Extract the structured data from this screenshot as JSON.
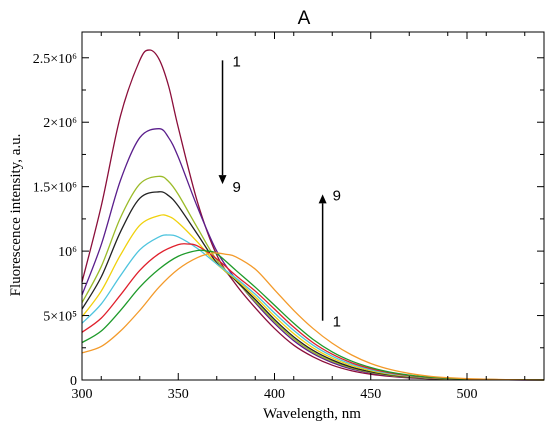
{
  "chart_data": {
    "type": "line",
    "title": "A",
    "xlabel": "Wavelength, nm",
    "ylabel": "Fluorescence intensity, a.u.",
    "xlim": [
      300,
      540
    ],
    "ylim": [
      0,
      2700000
    ],
    "xticks": [
      300,
      350,
      400,
      450,
      500
    ],
    "yticks": [
      {
        "value": 0,
        "label": "0"
      },
      {
        "value": 500000,
        "label": "5×10⁵"
      },
      {
        "value": 1000000,
        "label": "10⁶"
      },
      {
        "value": 1500000,
        "label": "1.5×10⁶"
      },
      {
        "value": 2000000,
        "label": "2×10⁶"
      },
      {
        "value": 2500000,
        "label": "2.5×10⁶"
      }
    ],
    "grid": false,
    "annotations": [
      {
        "direction": "down",
        "start_label": "1",
        "end_label": "9",
        "x_start": 373,
        "y_start": 2480000,
        "y_end": 1520000
      },
      {
        "direction": "up",
        "start_label": "1",
        "end_label": "9",
        "x_start": 425,
        "y_start": 460000,
        "y_end": 1440000
      }
    ],
    "series": [
      {
        "color": "#8b0e3a",
        "x": [
          300,
          310,
          320,
          330,
          335,
          340,
          345,
          350,
          360,
          370,
          380,
          390,
          400,
          410,
          420,
          430,
          440,
          450,
          460,
          470,
          480,
          490,
          500,
          510,
          520,
          540
        ],
        "y": [
          760000,
          1350000,
          2050000,
          2480000,
          2560000,
          2490000,
          2280000,
          1960000,
          1380000,
          970000,
          740000,
          560000,
          400000,
          270000,
          180000,
          115000,
          72000,
          45000,
          28000,
          17000,
          10000,
          6000,
          3000,
          1500,
          800,
          300
        ]
      },
      {
        "color": "#5a1e8c",
        "x": [
          300,
          310,
          320,
          330,
          340,
          345,
          350,
          360,
          370,
          380,
          390,
          400,
          410,
          420,
          430,
          440,
          450,
          460,
          470,
          480,
          490,
          500,
          510,
          520,
          540
        ],
        "y": [
          660000,
          1050000,
          1550000,
          1880000,
          1950000,
          1880000,
          1730000,
          1340000,
          1000000,
          780000,
          600000,
          440000,
          305000,
          205000,
          135000,
          85000,
          54000,
          33000,
          20000,
          12000,
          7000,
          4000,
          2000,
          1000,
          400
        ]
      },
      {
        "color": "#9bbb28",
        "x": [
          300,
          310,
          320,
          330,
          340,
          345,
          350,
          360,
          370,
          380,
          390,
          400,
          410,
          420,
          430,
          440,
          450,
          460,
          470,
          480,
          490,
          500,
          510,
          520,
          540
        ],
        "y": [
          600000,
          880000,
          1260000,
          1520000,
          1580000,
          1540000,
          1440000,
          1180000,
          930000,
          770000,
          610000,
          455000,
          320000,
          217000,
          145000,
          93000,
          59000,
          36000,
          22000,
          13000,
          8000,
          4500,
          2500,
          1200,
          500
        ]
      },
      {
        "color": "#222222",
        "x": [
          300,
          310,
          320,
          330,
          340,
          345,
          350,
          360,
          370,
          380,
          390,
          400,
          410,
          420,
          430,
          440,
          450,
          460,
          470,
          480,
          490,
          500,
          510,
          520,
          540
        ],
        "y": [
          550000,
          800000,
          1150000,
          1410000,
          1460000,
          1430000,
          1350000,
          1130000,
          910000,
          770000,
          625000,
          470000,
          335000,
          230000,
          155000,
          100000,
          64000,
          40000,
          24000,
          14000,
          8500,
          5000,
          2800,
          1400,
          500
        ]
      },
      {
        "color": "#f0d10c",
        "x": [
          300,
          310,
          320,
          330,
          340,
          345,
          350,
          360,
          370,
          380,
          390,
          400,
          410,
          420,
          430,
          440,
          450,
          460,
          470,
          480,
          490,
          500,
          510,
          520,
          540
        ],
        "y": [
          490000,
          690000,
          970000,
          1200000,
          1275000,
          1270000,
          1220000,
          1070000,
          900000,
          780000,
          645000,
          495000,
          360000,
          250000,
          170000,
          112000,
          72000,
          45000,
          28000,
          16000,
          9500,
          5500,
          3000,
          1500,
          600
        ]
      },
      {
        "color": "#4ec4de",
        "x": [
          300,
          310,
          320,
          330,
          340,
          345,
          350,
          360,
          370,
          380,
          390,
          400,
          410,
          420,
          430,
          440,
          450,
          460,
          470,
          480,
          490,
          500,
          510,
          520,
          540
        ],
        "y": [
          440000,
          590000,
          810000,
          1010000,
          1110000,
          1125000,
          1110000,
          1020000,
          900000,
          790000,
          665000,
          520000,
          385000,
          270000,
          185000,
          123000,
          80000,
          50000,
          31000,
          18000,
          11000,
          6000,
          3500,
          1800,
          700
        ]
      },
      {
        "color": "#e0202c",
        "x": [
          300,
          310,
          320,
          330,
          340,
          350,
          355,
          360,
          370,
          380,
          390,
          400,
          410,
          420,
          430,
          440,
          450,
          460,
          470,
          480,
          490,
          500,
          510,
          520,
          540
        ],
        "y": [
          370000,
          480000,
          660000,
          850000,
          980000,
          1050000,
          1055000,
          1040000,
          940000,
          810000,
          690000,
          550000,
          410000,
          290000,
          200000,
          134000,
          88000,
          55000,
          34000,
          20000,
          12000,
          7000,
          4000,
          2000,
          800
        ]
      },
      {
        "color": "#1e9a2a",
        "x": [
          300,
          310,
          320,
          330,
          340,
          350,
          360,
          365,
          370,
          380,
          390,
          400,
          410,
          420,
          430,
          440,
          450,
          460,
          470,
          480,
          490,
          500,
          510,
          520,
          540
        ],
        "y": [
          290000,
          380000,
          540000,
          720000,
          860000,
          960000,
          1005000,
          1000000,
          980000,
          850000,
          720000,
          580000,
          440000,
          315000,
          218000,
          147000,
          97000,
          61000,
          38000,
          22000,
          13000,
          7500,
          4200,
          2200,
          900
        ]
      },
      {
        "color": "#f39a2a",
        "x": [
          300,
          310,
          320,
          330,
          340,
          350,
          360,
          368,
          375,
          380,
          390,
          400,
          410,
          420,
          430,
          440,
          450,
          460,
          470,
          480,
          490,
          500,
          510,
          520,
          540
        ],
        "y": [
          210000,
          260000,
          380000,
          540000,
          720000,
          860000,
          950000,
          985000,
          975000,
          955000,
          860000,
          700000,
          540000,
          400000,
          285000,
          195000,
          128000,
          82000,
          51000,
          30000,
          18000,
          10000,
          5500,
          3000,
          1200
        ]
      }
    ]
  }
}
